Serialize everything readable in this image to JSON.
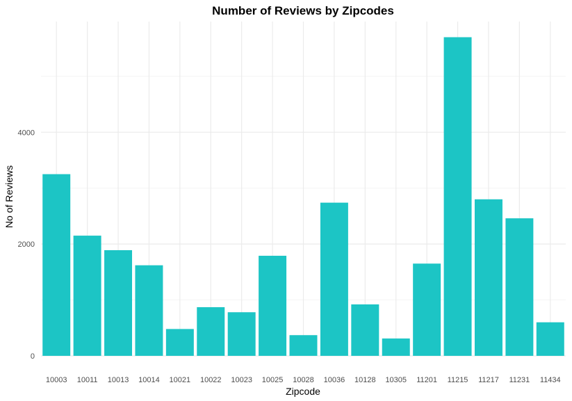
{
  "chart_data": {
    "type": "bar",
    "title": "Number of Reviews by Zipcodes",
    "xlabel": "Zipcode",
    "ylabel": "No of Reviews",
    "categories": [
      "10003",
      "10011",
      "10013",
      "10014",
      "10021",
      "10022",
      "10023",
      "10025",
      "10028",
      "10036",
      "10128",
      "10305",
      "11201",
      "11215",
      "11217",
      "11231",
      "11434"
    ],
    "values": [
      3250,
      2150,
      1890,
      1620,
      480,
      870,
      780,
      1790,
      370,
      2740,
      920,
      310,
      1650,
      5700,
      2800,
      2460,
      600
    ],
    "ylim": [
      0,
      5980
    ],
    "yticks": [
      0,
      2000,
      4000
    ],
    "ytick_labels": [
      "0",
      "2000",
      "4000"
    ],
    "minor_yticks": [
      1000,
      3000,
      5000
    ],
    "grid": true,
    "bar_color": "#1cc5c5",
    "grid_color": "#ebebeb",
    "minor_grid_color": "#f4f4f4",
    "background": "#ffffff"
  }
}
